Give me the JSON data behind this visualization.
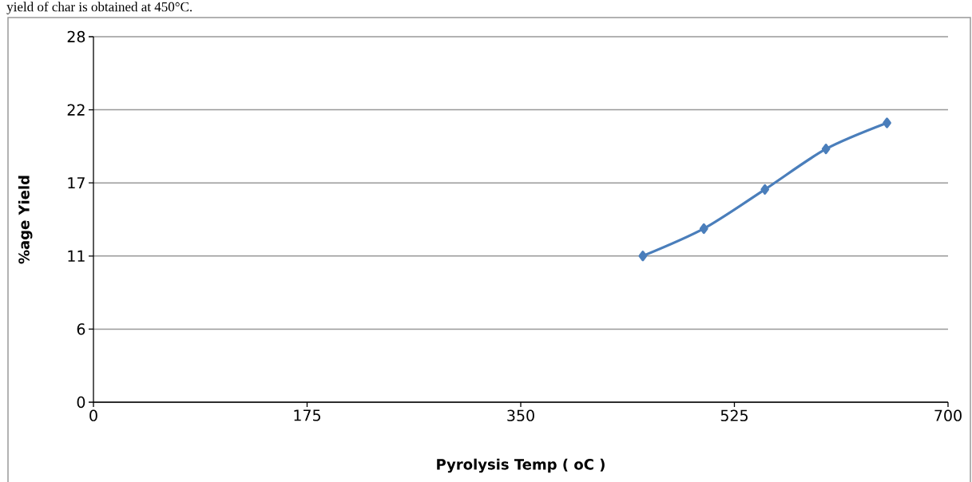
{
  "chart_data": {
    "type": "line",
    "annotations": [
      "yield of char is obtained at 450°C."
    ],
    "xlabel": "Pyrolysis Temp ( oC )",
    "ylabel": "%age Yield",
    "x": [
      450,
      500,
      550,
      600,
      650
    ],
    "series": [
      {
        "color": "#4a7ebb",
        "values": [
          11.2,
          13.3,
          16.3,
          19.4,
          21.4
        ]
      }
    ],
    "xlim": [
      0,
      700
    ],
    "xticks": [
      0,
      175,
      350,
      525,
      700
    ],
    "ylim": [
      0,
      28
    ],
    "yticks": [
      0,
      {
        "value": 5.6,
        "label": "6"
      },
      {
        "value": 11.2,
        "label": "11"
      },
      {
        "value": 16.8,
        "label": "17"
      },
      {
        "value": 22.4,
        "label": "22"
      },
      28
    ],
    "grid": "y",
    "marker": "diamond",
    "line_style": "solid"
  }
}
